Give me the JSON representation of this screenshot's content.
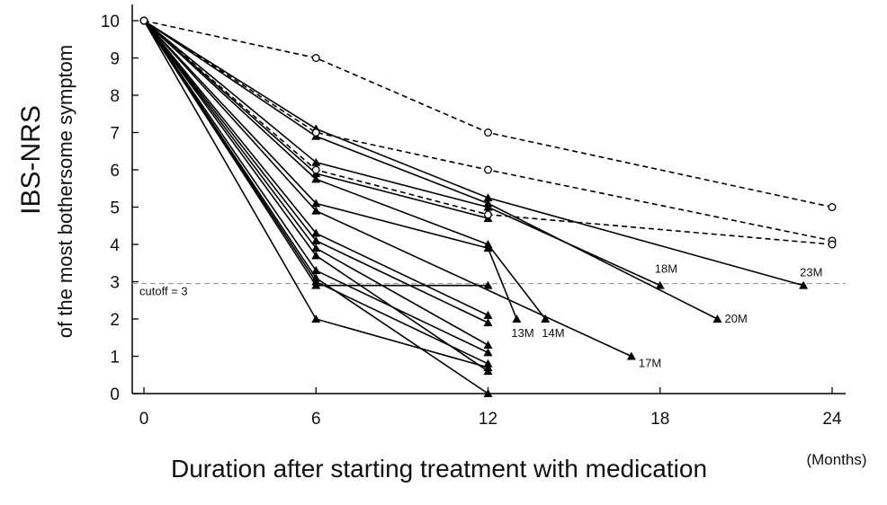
{
  "chart_data": {
    "type": "line",
    "ylabel_main": "IBS-NRS",
    "ylabel_sub": "of the most bothersome symptom",
    "xlabel": "Duration after starting treatment with medication",
    "x_unit": "(Months)",
    "xlim": [
      0,
      24
    ],
    "ylim": [
      0,
      10
    ],
    "x_ticks": [
      0,
      6,
      12,
      18,
      24
    ],
    "y_ticks": [
      0,
      1,
      2,
      3,
      4,
      5,
      6,
      7,
      8,
      9,
      10
    ],
    "cutoff": {
      "value": 2.95,
      "label": "cutoff = 3"
    },
    "solid_series": [
      [
        [
          0,
          10
        ],
        [
          6,
          7.1
        ],
        [
          12,
          5.25
        ],
        [
          23,
          2.9
        ]
      ],
      [
        [
          0,
          10
        ],
        [
          6,
          6.9
        ],
        [
          12,
          5.1
        ],
        [
          20,
          2.0
        ]
      ],
      [
        [
          0,
          10
        ],
        [
          6,
          6.2
        ],
        [
          12,
          5.0
        ],
        [
          18,
          2.9
        ]
      ],
      [
        [
          0,
          10
        ],
        [
          6,
          5.9
        ],
        [
          12,
          4.7
        ]
      ],
      [
        [
          0,
          10
        ],
        [
          6,
          5.75
        ],
        [
          12,
          4.0
        ],
        [
          14,
          2.0
        ]
      ],
      [
        [
          0,
          10
        ],
        [
          6,
          5.1
        ],
        [
          12,
          3.9
        ],
        [
          13,
          2.0
        ]
      ],
      [
        [
          0,
          10
        ],
        [
          6,
          4.9
        ],
        [
          17,
          1.0
        ]
      ],
      [
        [
          0,
          10
        ],
        [
          6,
          4.3
        ],
        [
          12,
          2.1
        ]
      ],
      [
        [
          0,
          10
        ],
        [
          6,
          4.1
        ],
        [
          12,
          1.9
        ]
      ],
      [
        [
          0,
          10
        ],
        [
          6,
          3.9
        ],
        [
          12,
          1.3
        ]
      ],
      [
        [
          0,
          10
        ],
        [
          6,
          3.7
        ],
        [
          12,
          0.6
        ]
      ],
      [
        [
          0,
          10
        ],
        [
          6,
          3.3
        ],
        [
          12,
          1.1
        ]
      ],
      [
        [
          0,
          10
        ],
        [
          6,
          3.1
        ],
        [
          12,
          0.0
        ]
      ],
      [
        [
          0,
          10
        ],
        [
          6,
          3.0
        ],
        [
          12,
          0.8
        ]
      ],
      [
        [
          0,
          10
        ],
        [
          6,
          2.9
        ],
        [
          12,
          2.9
        ]
      ],
      [
        [
          0,
          10
        ],
        [
          6,
          2.0
        ],
        [
          12,
          0.7
        ]
      ]
    ],
    "dashed_series": [
      [
        [
          0,
          10
        ],
        [
          6,
          9.0
        ],
        [
          12,
          7.0
        ],
        [
          24,
          5.0
        ]
      ],
      [
        [
          0,
          10
        ],
        [
          6,
          7.0
        ],
        [
          12,
          6.0
        ],
        [
          24,
          4.1
        ]
      ],
      [
        [
          0,
          10
        ],
        [
          6,
          6.0
        ],
        [
          12,
          4.8
        ],
        [
          24,
          4.0
        ]
      ]
    ],
    "annotations": [
      {
        "text": "13M",
        "x": 13,
        "y": 2.0
      },
      {
        "text": "14M",
        "x": 14,
        "y": 2.0
      },
      {
        "text": "17M",
        "x": 17,
        "y": 1.0
      },
      {
        "text": "18M",
        "x": 18,
        "y": 2.9
      },
      {
        "text": "20M",
        "x": 20,
        "y": 2.0
      },
      {
        "text": "23M",
        "x": 23,
        "y": 2.9
      }
    ]
  }
}
